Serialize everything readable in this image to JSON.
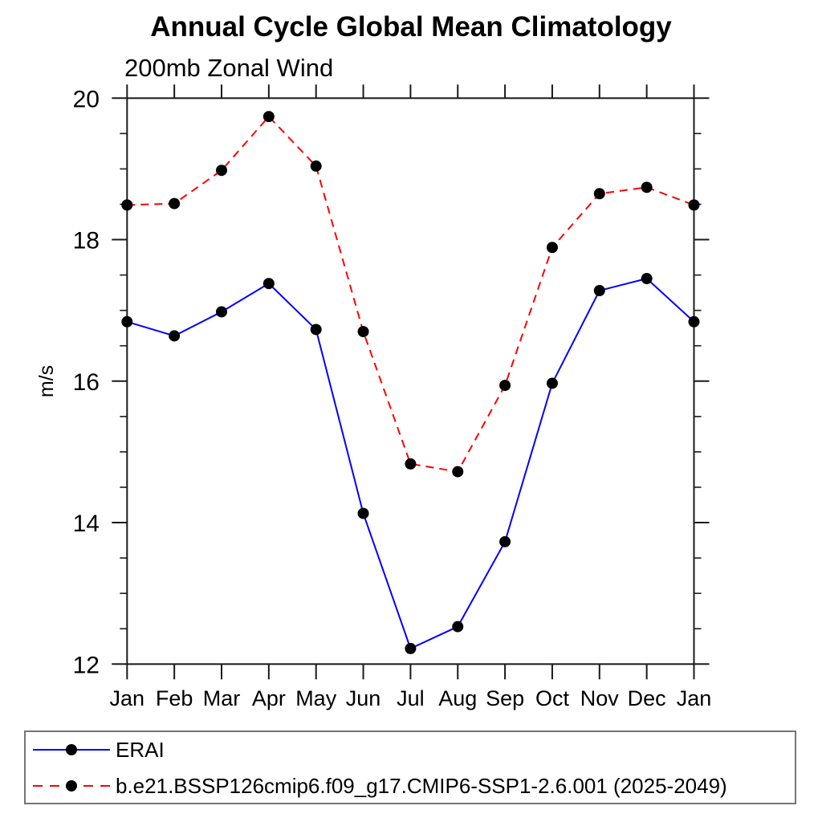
{
  "chart_data": {
    "type": "line",
    "title": "Annual Cycle Global Mean Climatology",
    "subtitle": "200mb Zonal Wind",
    "xlabel": "",
    "ylabel": "m/s",
    "categories": [
      "Jan",
      "Feb",
      "Mar",
      "Apr",
      "May",
      "Jun",
      "Jul",
      "Aug",
      "Sep",
      "Oct",
      "Nov",
      "Dec",
      "Jan"
    ],
    "ylim": [
      12,
      20
    ],
    "ytick_major": [
      12,
      14,
      16,
      18,
      20
    ],
    "ytick_labels": [
      "12",
      "14",
      "16",
      "18",
      "20"
    ],
    "ytick_minor_step": 0.5,
    "grid": false,
    "legend_position": "bottom-left-box",
    "axis_color": "#1a1a1a",
    "marker_shape": "filled-circle",
    "series": [
      {
        "name": "ERAI",
        "color": "#0000ff",
        "line_style": "solid",
        "marker_color": "#000000",
        "values": [
          16.84,
          16.64,
          16.98,
          17.38,
          16.73,
          14.13,
          12.22,
          12.53,
          13.73,
          15.97,
          17.28,
          17.45,
          16.84
        ]
      },
      {
        "name": "b.e21.BSSP126cmip6.f09_g17.CMIP6-SSP1-2.6.001 (2025-2049)",
        "color": "#ff0000",
        "line_style": "dashed",
        "marker_color": "#000000",
        "values": [
          18.49,
          18.51,
          18.98,
          19.74,
          19.04,
          16.7,
          14.83,
          14.72,
          15.94,
          17.89,
          18.65,
          18.74,
          18.49
        ]
      }
    ]
  }
}
